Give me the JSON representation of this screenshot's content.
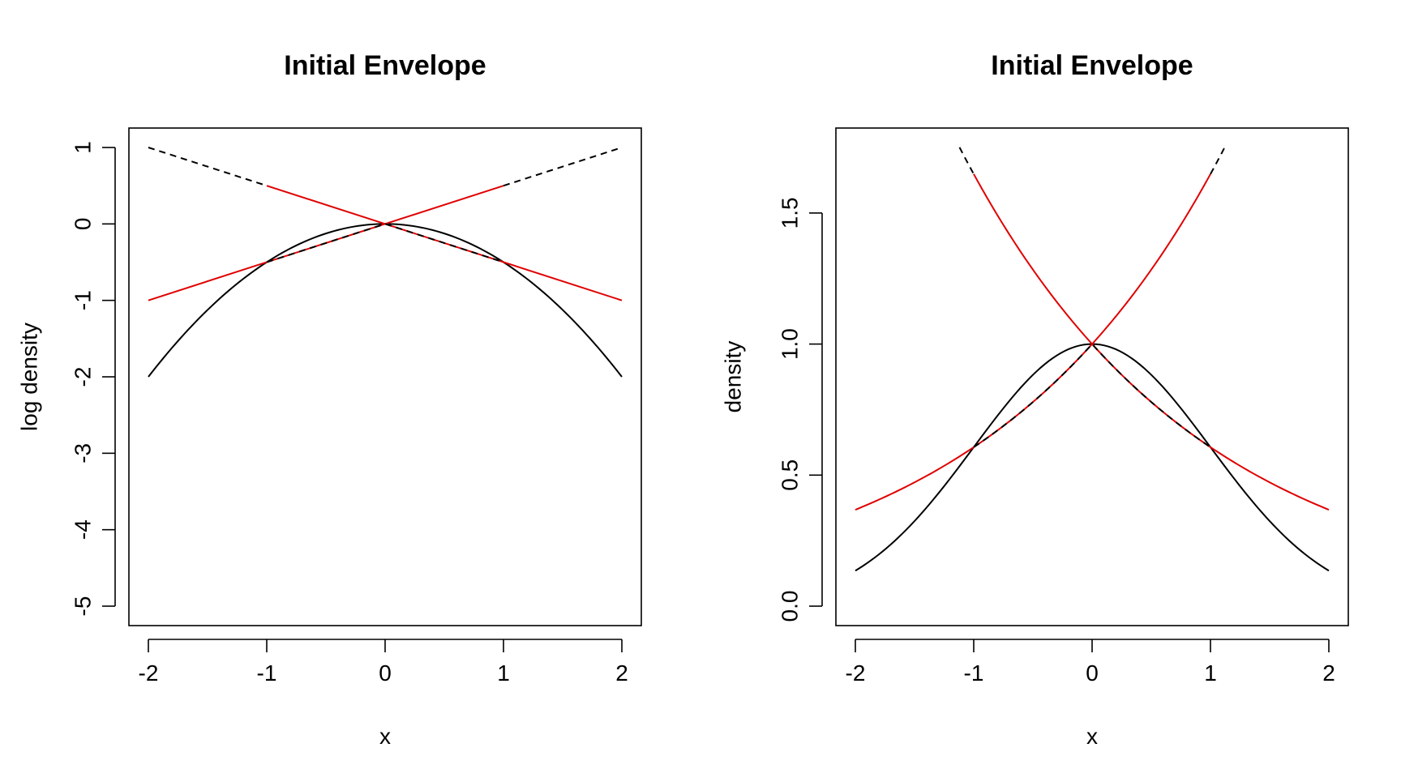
{
  "chart_data": [
    {
      "type": "line",
      "title": "Initial Envelope",
      "xlabel": "x",
      "ylabel": "log density",
      "xlim": [
        -2,
        2
      ],
      "ylim": [
        -5,
        1
      ],
      "x_ticks": [
        "-2",
        "-1",
        "0",
        "1",
        "2"
      ],
      "y_ticks": [
        "-5",
        "-4",
        "-3",
        "-2",
        "-1",
        "0",
        "1"
      ],
      "grid": false,
      "series": [
        {
          "function": "-x^2/2",
          "style": "solid",
          "color": "#000000",
          "x": [
            -2,
            -1.5,
            -1,
            -0.5,
            0,
            0.5,
            1,
            1.5,
            2
          ],
          "y": [
            -2,
            -1.125,
            -0.5,
            -0.125,
            0,
            -0.125,
            -0.5,
            -1.125,
            -2
          ]
        },
        {
          "style": "solid",
          "color": "#e00000",
          "x": [
            -2,
            0,
            1
          ],
          "y": [
            -1,
            0,
            0.5
          ]
        },
        {
          "style": "solid",
          "color": "#e00000",
          "x": [
            -1,
            0,
            2
          ],
          "y": [
            0.5,
            0,
            -1
          ]
        },
        {
          "style": "dashed",
          "color": "#000000",
          "x": [
            -2,
            -1
          ],
          "y": [
            1,
            0.5
          ]
        },
        {
          "style": "dashed",
          "color": "#000000",
          "x": [
            1,
            2
          ],
          "y": [
            0.5,
            1
          ]
        },
        {
          "style": "dashed",
          "color": "#000000",
          "x": [
            -1,
            0
          ],
          "y": [
            -0.5,
            0
          ]
        },
        {
          "style": "dashed",
          "color": "#000000",
          "x": [
            0,
            1
          ],
          "y": [
            0,
            -0.5
          ]
        }
      ]
    },
    {
      "type": "line",
      "title": "Initial Envelope",
      "xlabel": "x",
      "ylabel": "density",
      "xlim": [
        -2,
        2
      ],
      "ylim": [
        0,
        1.75
      ],
      "x_ticks": [
        "-2",
        "-1",
        "0",
        "1",
        "2"
      ],
      "y_ticks": [
        "0.0",
        "0.5",
        "1.0",
        "1.5"
      ],
      "grid": false,
      "series": [
        {
          "function": "exp(-x^2/2)",
          "style": "solid",
          "color": "#000000",
          "x": [
            -2,
            -1,
            0,
            1,
            2
          ],
          "y": [
            0.135,
            0.607,
            1,
            0.607,
            0.135
          ]
        },
        {
          "function": "exp(-|x|/2)",
          "style": "solid",
          "color": "#e00000",
          "x": [
            -2,
            -1,
            0,
            1,
            2
          ],
          "y": [
            0.368,
            0.607,
            1,
            0.607,
            0.368
          ]
        },
        {
          "function": "exp(|x|/2)",
          "style": "solid",
          "color": "#e00000",
          "x": [
            -1,
            0,
            1
          ],
          "y": [
            1.649,
            1,
            1.649
          ]
        },
        {
          "function": "exp(|x|/2)",
          "style": "dashed",
          "color": "#000000",
          "x": [
            -1.12,
            -1
          ],
          "y": [
            1.75,
            1.649
          ]
        },
        {
          "function": "exp(|x|/2)",
          "style": "dashed",
          "color": "#000000",
          "x": [
            1,
            1.12
          ],
          "y": [
            1.649,
            1.75
          ]
        },
        {
          "function": "exp(-|x|/2)",
          "style": "dashed",
          "color": "#000000",
          "x": [
            -1,
            0,
            1
          ],
          "y": [
            0.607,
            1,
            0.607
          ]
        }
      ]
    }
  ]
}
